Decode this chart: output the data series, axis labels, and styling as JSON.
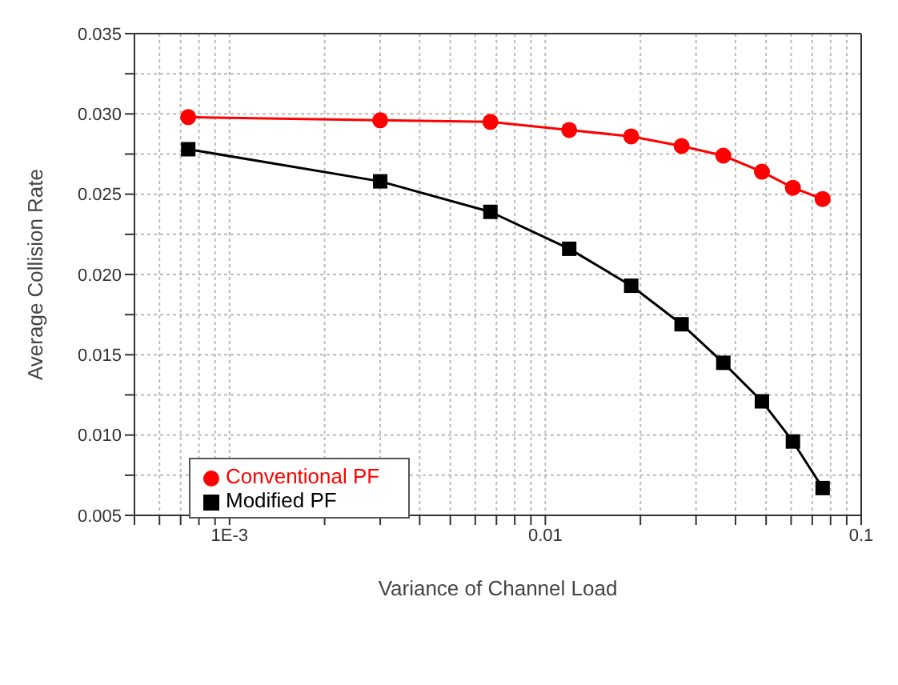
{
  "chart_data": {
    "type": "line",
    "xlabel": "Variance of Channel Load",
    "ylabel": "Average Collision Rate",
    "x": [
      0.00074,
      0.003,
      0.0067,
      0.0119,
      0.0187,
      0.027,
      0.0366,
      0.0485,
      0.0608,
      0.0755
    ],
    "series": [
      {
        "name": "Modified PF",
        "color": "#000000",
        "marker": "square",
        "values": [
          0.0278,
          0.0258,
          0.0239,
          0.0216,
          0.0193,
          0.0169,
          0.0145,
          0.0121,
          0.0096,
          0.0067
        ]
      },
      {
        "name": "Conventional PF",
        "color": "#ff0000",
        "marker": "circle",
        "values": [
          0.0298,
          0.0296,
          0.0295,
          0.029,
          0.0286,
          0.028,
          0.0274,
          0.0264,
          0.0254,
          0.0247
        ]
      }
    ],
    "log": "x",
    "xlim": [
      0.0005,
      0.1
    ],
    "xticks": [
      {
        "value": 0.0005,
        "label": null
      },
      {
        "value": 0.0006,
        "label": null
      },
      {
        "value": 0.0007,
        "label": null
      },
      {
        "value": 0.0008,
        "label": null
      },
      {
        "value": 0.0009,
        "label": null
      },
      {
        "value": 0.001,
        "label": "1E-3"
      },
      {
        "value": 0.002,
        "label": null
      },
      {
        "value": 0.003,
        "label": null
      },
      {
        "value": 0.004,
        "label": null
      },
      {
        "value": 0.005,
        "label": null
      },
      {
        "value": 0.006,
        "label": null
      },
      {
        "value": 0.007,
        "label": null
      },
      {
        "value": 0.008,
        "label": null
      },
      {
        "value": 0.009,
        "label": null
      },
      {
        "value": 0.01,
        "label": "0.01"
      },
      {
        "value": 0.02,
        "label": null
      },
      {
        "value": 0.03,
        "label": null
      },
      {
        "value": 0.04,
        "label": null
      },
      {
        "value": 0.05,
        "label": null
      },
      {
        "value": 0.06,
        "label": null
      },
      {
        "value": 0.07,
        "label": null
      },
      {
        "value": 0.08,
        "label": null
      },
      {
        "value": 0.09,
        "label": null
      },
      {
        "value": 0.1,
        "label": "0.1"
      }
    ],
    "ylim": [
      0.005,
      0.035
    ],
    "yticks": [
      {
        "value": 0.005,
        "label": "0.005"
      },
      {
        "value": 0.0075,
        "label": null
      },
      {
        "value": 0.01,
        "label": "0.010"
      },
      {
        "value": 0.0125,
        "label": null
      },
      {
        "value": 0.015,
        "label": "0.015"
      },
      {
        "value": 0.0175,
        "label": null
      },
      {
        "value": 0.02,
        "label": "0.020"
      },
      {
        "value": 0.0225,
        "label": null
      },
      {
        "value": 0.025,
        "label": "0.025"
      },
      {
        "value": 0.0275,
        "label": null
      },
      {
        "value": 0.03,
        "label": "0.030"
      },
      {
        "value": 0.0325,
        "label": null
      },
      {
        "value": 0.035,
        "label": "0.035"
      }
    ],
    "grid": true,
    "legend": "bottom left",
    "line_style": "solid"
  }
}
